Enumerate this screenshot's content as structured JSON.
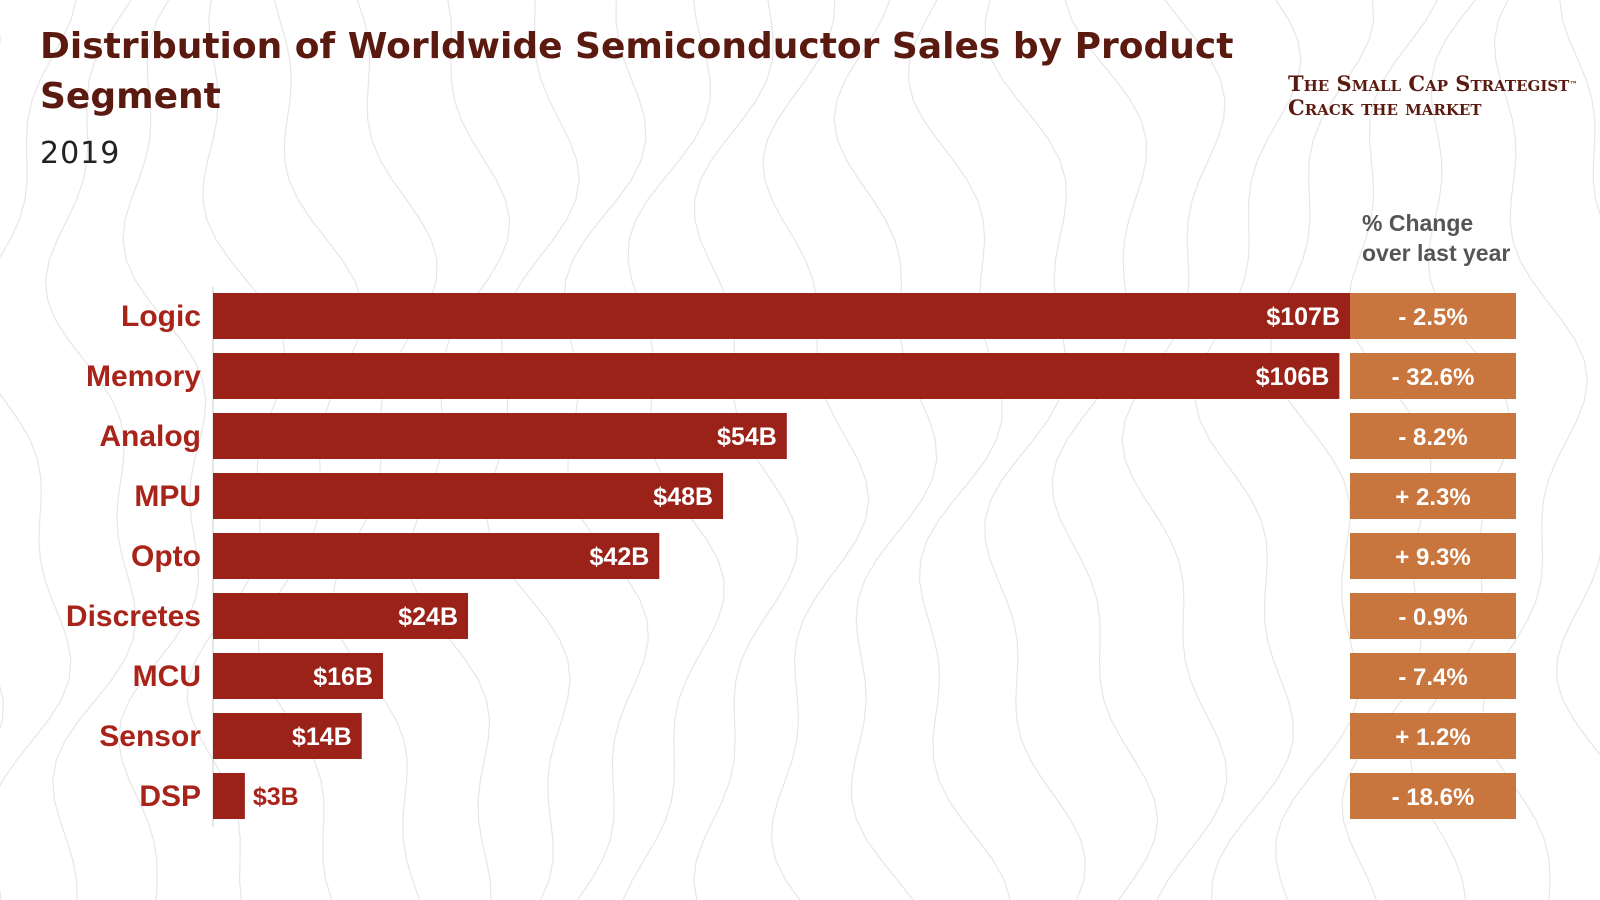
{
  "header": {
    "title": "Distribution of Worldwide Semiconductor Sales by Product Segment",
    "subtitle": "2019"
  },
  "brand": {
    "line1": "The Small Cap Strategist",
    "trademark": "™",
    "line2": "Crack the market"
  },
  "change_header": {
    "line1": "% Change",
    "line2": "over last year"
  },
  "colors": {
    "bar": "#9b2219",
    "change_box": "#c8753e",
    "category_text": "#a8231a",
    "title_text": "#5a1a10"
  },
  "chart_data": {
    "type": "bar",
    "orientation": "horizontal",
    "title": "Distribution of Worldwide Semiconductor Sales by Product Segment",
    "subtitle": "2019",
    "categories": [
      "Logic",
      "Memory",
      "Analog",
      "MPU",
      "Opto",
      "Discretes",
      "MCU",
      "Sensor",
      "DSP"
    ],
    "values": [
      107,
      106,
      54,
      48,
      42,
      24,
      16,
      14,
      3
    ],
    "value_labels": [
      "$107B",
      "$106B",
      "$54B",
      "$48B",
      "$42B",
      "$24B",
      "$16B",
      "$14B",
      "$3B"
    ],
    "unit": "USD billions",
    "change_title": "% Change over last year",
    "change_pct": [
      -2.5,
      -32.6,
      -8.2,
      2.3,
      9.3,
      -0.9,
      -7.4,
      1.2,
      -18.6
    ],
    "change_labels": [
      "- 2.5%",
      "- 32.6%",
      "- 8.2%",
      "+ 2.3%",
      "+ 9.3%",
      "- 0.9%",
      "- 7.4%",
      "+ 1.2%",
      "- 18.6%"
    ],
    "xlim": [
      0,
      107
    ],
    "grid": false,
    "legend": "none"
  }
}
